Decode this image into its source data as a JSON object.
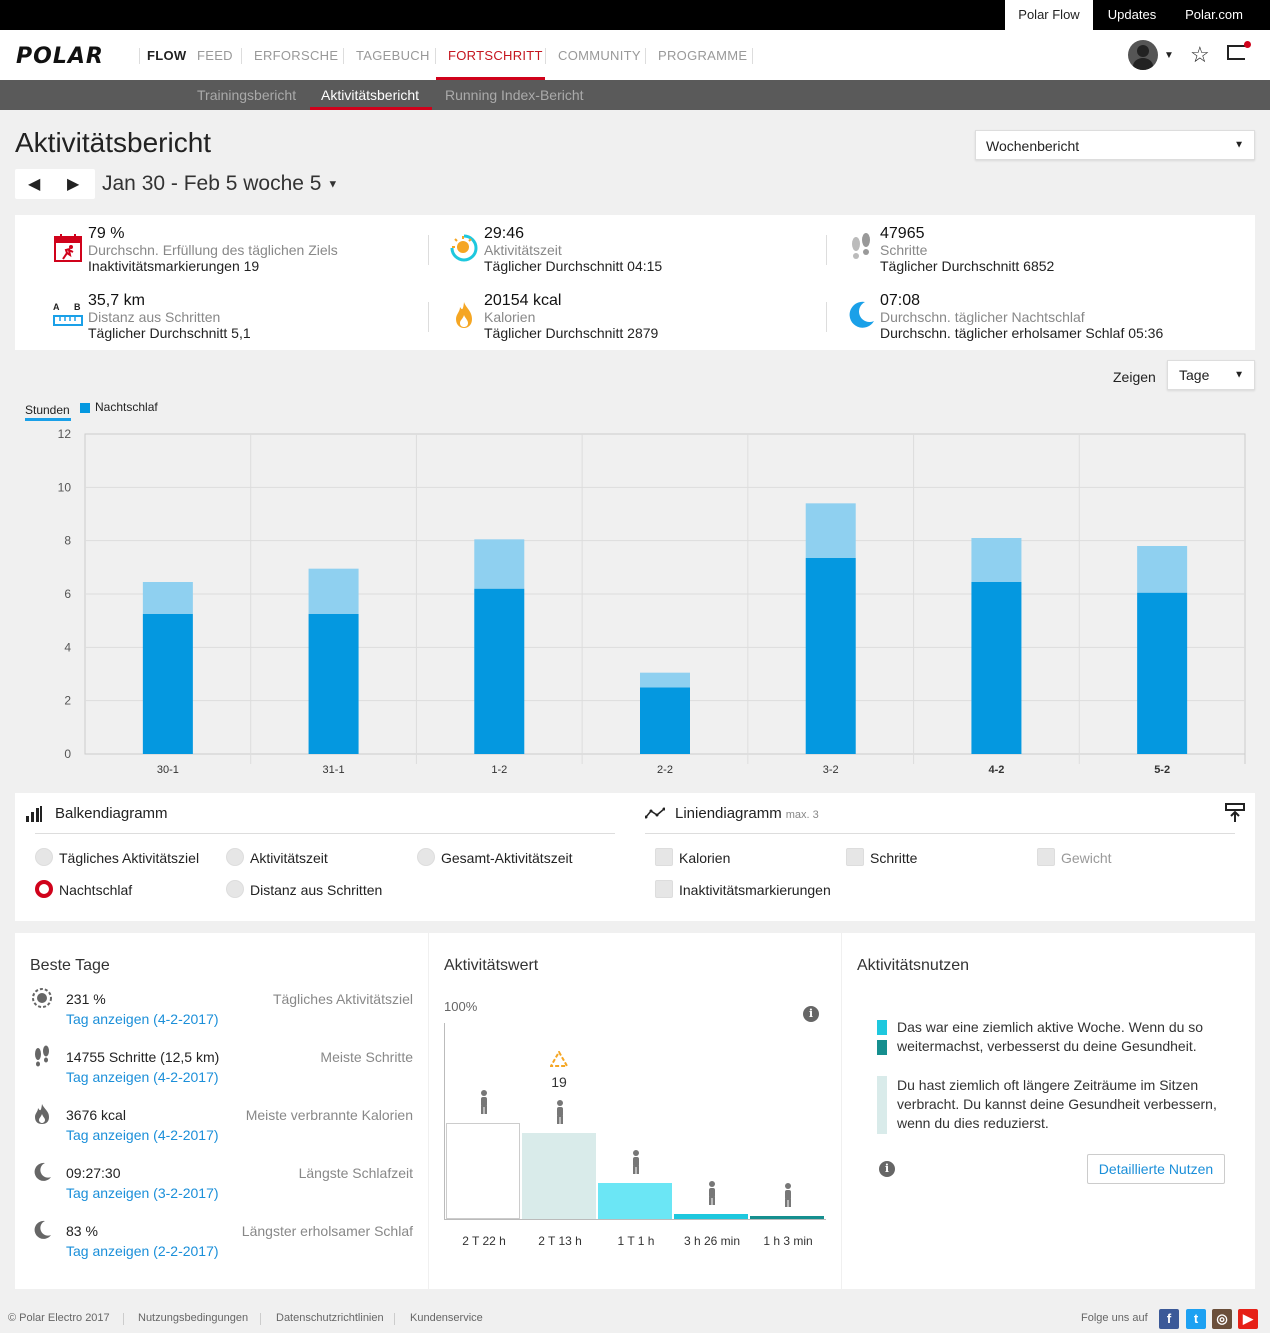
{
  "topbar": {
    "links": [
      "Polar Flow",
      "Updates",
      "Polar.com"
    ]
  },
  "nav": {
    "logo": "POLAR",
    "flow": "FLOW",
    "items": [
      "FEED",
      "ERFORSCHE",
      "TAGEBUCH",
      "FORTSCHRITT",
      "COMMUNITY",
      "PROGRAMME"
    ],
    "active": "FORTSCHRITT"
  },
  "subnav": {
    "items": [
      "Trainingsbericht",
      "Aktivitätsbericht",
      "Running Index-Bericht"
    ],
    "active": "Aktivitätsbericht"
  },
  "page": {
    "title": "Aktivitätsbericht",
    "report_select": "Wochenbericht",
    "date_range": "Jan 30 - Feb 5 woche 5"
  },
  "summary": [
    {
      "value": "79 %",
      "label": "Durchschn. Erfüllung des täglichen Ziels",
      "sub": "Inaktivitätsmarkierungen 19",
      "icon": "daily-goal-icon"
    },
    {
      "value": "29:46",
      "label": "Aktivitätszeit",
      "sub": "Täglicher Durchschnitt 04:15",
      "icon": "activity-time-icon"
    },
    {
      "value": "47965",
      "label": "Schritte",
      "sub": "Täglicher Durchschnitt 6852",
      "icon": "footsteps-icon"
    },
    {
      "value": "35,7 km",
      "label": "Distanz aus Schritten",
      "sub": "Täglicher Durchschnitt 5,1",
      "icon": "distance-ruler-icon"
    },
    {
      "value": "20154 kcal",
      "label": "Kalorien",
      "sub": "Täglicher Durchschnitt 2879",
      "icon": "flame-icon"
    },
    {
      "value": "07:08",
      "label": "Durchschn. täglicher Nachtschlaf",
      "sub": "Durchschn. täglicher erholsamer Schlaf 05:36",
      "icon": "moon-icon"
    }
  ],
  "chart_controls": {
    "zeigen_label": "Zeigen",
    "zeigen_value": "Tage",
    "unit_tab": "Stunden",
    "legend": "Nachtschlaf"
  },
  "chart_data": {
    "type": "bar",
    "categories": [
      "30-1",
      "31-1",
      "1-2",
      "2-2",
      "3-2",
      "4-2",
      "5-2"
    ],
    "bold_categories": [
      "4-2",
      "5-2"
    ],
    "series": [
      {
        "name": "Nachtschlaf",
        "values": [
          5.25,
          5.25,
          6.2,
          2.5,
          7.35,
          6.45,
          6.05
        ],
        "color": "#0498e0"
      },
      {
        "values": [
          1.2,
          1.7,
          1.85,
          0.55,
          2.05,
          1.65,
          1.75
        ],
        "color": "#8fd0f0"
      }
    ],
    "stacked": true,
    "ylim": [
      0,
      12
    ],
    "yticks": [
      0,
      2,
      4,
      6,
      8,
      10,
      12
    ],
    "grid": true
  },
  "controls": {
    "bar_title": "Balkendiagramm",
    "line_title": "Liniendiagramm",
    "line_max": "max. 3",
    "bar_options": [
      "Tägliches Aktivitätsziel",
      "Aktivitätszeit",
      "Gesamt-Aktivitätszeit",
      "Nachtschlaf",
      "Distanz aus Schritten"
    ],
    "bar_selected": "Nachtschlaf",
    "line_options": [
      "Kalorien",
      "Schritte",
      "Gewicht",
      "Inaktivitätsmarkierungen"
    ]
  },
  "best_days": {
    "title": "Beste Tage",
    "rows": [
      {
        "value": "231 %",
        "link": "Tag anzeigen (4-2-2017)",
        "label": "Tägliches Aktivitätsziel",
        "icon": "goal-ring-icon"
      },
      {
        "value": "14755 Schritte (12,5 km)",
        "link": "Tag anzeigen (4-2-2017)",
        "label": "Meiste Schritte",
        "icon": "footsteps-icon"
      },
      {
        "value": "3676 kcal",
        "link": "Tag anzeigen (4-2-2017)",
        "label": "Meiste verbrannte Kalorien",
        "icon": "flame-icon"
      },
      {
        "value": "09:27:30",
        "link": "Tag anzeigen (3-2-2017)",
        "label": "Längste Schlafzeit",
        "icon": "moon-icon"
      },
      {
        "value": "83 %",
        "link": "Tag anzeigen (2-2-2017)",
        "label": "Längster erholsamer Schlaf",
        "icon": "moon-icon"
      }
    ]
  },
  "activity_value": {
    "title": "Aktivitätswert",
    "percent_label": "100%",
    "inactivity_count": "19",
    "levels": [
      {
        "label": "2 T 22 h",
        "icon": "resting-icon",
        "fraction": 0.37,
        "color": "#ffffff",
        "border": "#ccc"
      },
      {
        "label": "2 T 13 h",
        "icon": "sitting-icon",
        "fraction": 0.33,
        "color": "#d9ebea",
        "border": "#d9ebea"
      },
      {
        "label": "1 T 1 h",
        "icon": "standing-icon",
        "fraction": 0.14,
        "color": "#6be6f5",
        "border": "#6be6f5"
      },
      {
        "label": "3 h 26 min",
        "icon": "walking-icon",
        "fraction": 0.02,
        "color": "#1ec8de",
        "border": "#1ec8de"
      },
      {
        "label": "1 h 3 min",
        "icon": "running-icon",
        "fraction": 0.01,
        "color": "#158f8f",
        "border": "#158f8f"
      }
    ]
  },
  "activity_benefit": {
    "title": "Aktivitätsnutzen",
    "text1": "Das war eine ziemlich aktive Woche. Wenn du so weitermachst, verbesserst du deine Gesundheit.",
    "text2": "Du hast ziemlich oft längere Zeiträume im Sitzen verbracht. Du kannst deine Gesundheit verbessern, wenn du dies reduzierst.",
    "button": "Detaillierte Nutzen",
    "colors": [
      "#1ec8de",
      "#158f8f",
      "#d9ebea"
    ]
  },
  "footer": {
    "copyright": "© Polar Electro 2017",
    "links": [
      "Nutzungsbedingungen",
      "Datenschutzrichtlinien",
      "Kundenservice"
    ],
    "follow": "Folge uns auf"
  }
}
